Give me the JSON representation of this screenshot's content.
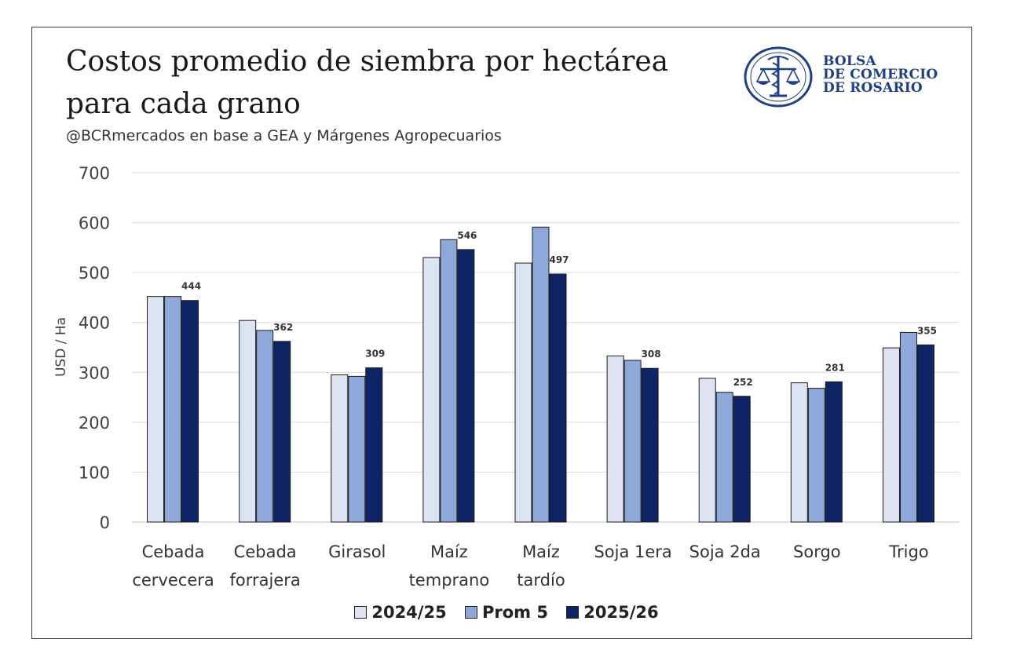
{
  "header": {
    "title": "Costos promedio de siembra por hectárea para cada grano",
    "subtitle": "@BCRmercados en base a GEA y Márgenes Agropecuarios",
    "logo_lines": [
      "BOLSA",
      "DE COMERCIO",
      "DE ROSARIO"
    ]
  },
  "colors": {
    "series_2024_25": "#dde3f2",
    "series_prom5": "#8fa8da",
    "series_2025_26": "#0e2464",
    "grid": "#d9d9d9",
    "logo": "#1f3f86"
  },
  "chart_data": {
    "type": "bar",
    "title": "Costos promedio de siembra por hectárea para cada grano",
    "subtitle": "@BCRmercados en base a GEA y Márgenes Agropecuarios",
    "xlabel": "",
    "ylabel": "USD / Ha",
    "ylim": [
      0,
      700
    ],
    "yticks": [
      "0",
      "100",
      "200",
      "300",
      "400",
      "500",
      "600",
      "700"
    ],
    "grid": true,
    "legend_position": "bottom",
    "categories": [
      [
        "Cebada",
        "cervecera"
      ],
      [
        "Cebada",
        "forrajera"
      ],
      [
        "Girasol"
      ],
      [
        "Maíz",
        "temprano"
      ],
      [
        "Maíz",
        "tardío"
      ],
      [
        "Soja 1era"
      ],
      [
        "Soja 2da"
      ],
      [
        "Sorgo"
      ],
      [
        "Trigo"
      ]
    ],
    "series": [
      {
        "name": "2024/25",
        "values": [
          452,
          404,
          295,
          530,
          519,
          333,
          288,
          279,
          349
        ]
      },
      {
        "name": "Prom 5",
        "values": [
          452,
          384,
          292,
          566,
          591,
          324,
          260,
          268,
          380
        ]
      },
      {
        "name": "2025/26",
        "values": [
          444,
          362,
          309,
          546,
          497,
          308,
          252,
          281,
          355
        ]
      }
    ],
    "data_labels": [
      "444",
      "362",
      "309",
      "546",
      "497",
      "308",
      "252",
      "281",
      "355"
    ]
  }
}
